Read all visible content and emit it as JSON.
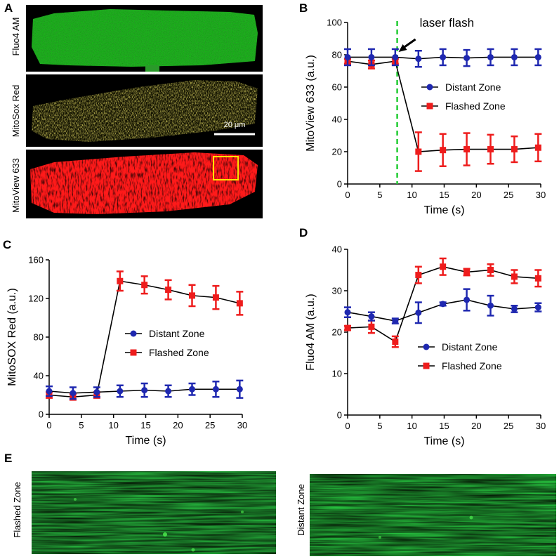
{
  "panel_letters": {
    "a": "A",
    "b": "B",
    "c": "C",
    "d": "D",
    "e": "E"
  },
  "panel_a": {
    "rows": [
      "Fluo4 AM",
      "MitoSox Red",
      "MitoView 633"
    ],
    "scale_bar_label": "20 μm",
    "colors": {
      "fluo4": "#2c9a2c",
      "mitosox": "#b5a626",
      "mitoview": "#ff1a1a",
      "roi_box": "#ffe400"
    }
  },
  "panel_e": {
    "labels": [
      "Flashed Zone",
      "Distant Zone"
    ]
  },
  "colors": {
    "distant": "#1f28b0",
    "flashed": "#ee1c1c",
    "flash_line": "#22cc33"
  },
  "chart_data": [
    {
      "id": "B",
      "type": "line",
      "xlabel": "Time (s)",
      "ylabel": "MitoView 633 (a.u.)",
      "xlim": [
        0,
        30
      ],
      "ylim": [
        0,
        100
      ],
      "xticks": [
        0,
        5,
        10,
        15,
        20,
        25,
        30
      ],
      "yticks": [
        0,
        20,
        40,
        60,
        80,
        100
      ],
      "annotation": "laser flash",
      "flash_time": 7.7,
      "legend": "center-right",
      "series": [
        {
          "name": "Distant Zone",
          "marker": "circle",
          "x": [
            0,
            3.7,
            7.4,
            11,
            14.8,
            18.5,
            22.2,
            25.9,
            29.6
          ],
          "y": [
            78.5,
            78.5,
            78.5,
            77.5,
            78.5,
            78,
            78.5,
            78.5,
            78.5
          ],
          "err": [
            5,
            5,
            5,
            5,
            5,
            5,
            5,
            5,
            5
          ]
        },
        {
          "name": "Flashed Zone",
          "marker": "square",
          "x": [
            0,
            3.7,
            7.4,
            11,
            14.8,
            18.5,
            22.2,
            25.9,
            29.6
          ],
          "y": [
            76,
            74,
            76,
            20,
            21,
            21.5,
            21.5,
            21.5,
            22.5
          ],
          "err": [
            1.5,
            2.5,
            1.5,
            12,
            10,
            10,
            9,
            8,
            8.5
          ]
        }
      ]
    },
    {
      "id": "C",
      "type": "line",
      "xlabel": "Time (s)",
      "ylabel": "MitoSOX Red (a.u.)",
      "xlim": [
        0,
        30
      ],
      "ylim": [
        0,
        160
      ],
      "xticks": [
        0,
        5,
        10,
        15,
        20,
        25,
        30
      ],
      "yticks": [
        0,
        40,
        80,
        120,
        160
      ],
      "legend": "center-right",
      "series": [
        {
          "name": "Distant Zone",
          "marker": "circle",
          "x": [
            0,
            3.7,
            7.4,
            11,
            14.8,
            18.5,
            22.2,
            25.9,
            29.6
          ],
          "y": [
            24,
            22,
            23,
            24,
            25,
            24,
            26,
            26,
            26
          ],
          "err": [
            5,
            6,
            5,
            6,
            7,
            6,
            6,
            8,
            9
          ]
        },
        {
          "name": "Flashed Zone",
          "marker": "square",
          "x": [
            0,
            3.7,
            7.4,
            11,
            14.8,
            18.5,
            22.2,
            25.9,
            29.6
          ],
          "y": [
            20,
            18,
            20,
            138,
            134,
            129,
            123,
            121,
            115
          ],
          "err": [
            3,
            3,
            3,
            10,
            9,
            10,
            11,
            12,
            12
          ]
        }
      ]
    },
    {
      "id": "D",
      "type": "line",
      "xlabel": "Time (s)",
      "ylabel": "Fluo4 AM (a.u.)",
      "xlim": [
        0,
        30
      ],
      "ylim": [
        0,
        40
      ],
      "xticks": [
        0,
        5,
        10,
        15,
        20,
        25,
        30
      ],
      "yticks": [
        0,
        10,
        20,
        30,
        40
      ],
      "legend": "lower-right",
      "series": [
        {
          "name": "Distant Zone",
          "marker": "circle",
          "x": [
            0,
            3.7,
            7.4,
            11,
            14.8,
            18.5,
            22.2,
            25.9,
            29.6
          ],
          "y": [
            24.8,
            23.8,
            22.7,
            24.7,
            26.8,
            27.8,
            26.4,
            25.6,
            26
          ],
          "err": [
            1.2,
            1,
            0.6,
            2.5,
            0.4,
            2.6,
            2.4,
            0.8,
            1
          ]
        },
        {
          "name": "Flashed Zone",
          "marker": "square",
          "x": [
            0,
            3.7,
            7.4,
            11,
            14.8,
            18.5,
            22.2,
            25.9,
            29.6
          ],
          "y": [
            21,
            21.3,
            17.7,
            33.8,
            35.8,
            34.5,
            35,
            33.4,
            33
          ],
          "err": [
            0.5,
            1.5,
            1.3,
            2,
            2,
            0.8,
            1.4,
            1.6,
            2
          ]
        }
      ]
    }
  ]
}
